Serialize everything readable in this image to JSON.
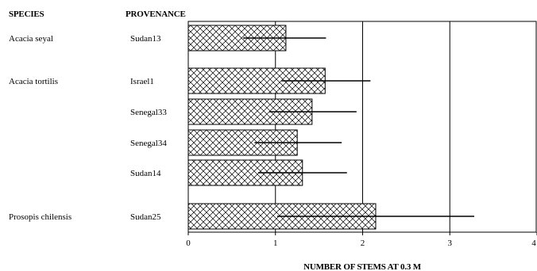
{
  "chart_data": {
    "type": "bar",
    "orientation": "horizontal",
    "headers": {
      "species": "SPECIES",
      "provenance": "PROVENANCE"
    },
    "xlabel": "NUMBER OF STEMS AT 0.3 M",
    "xlim": [
      0,
      4
    ],
    "xticks": [
      "0",
      "1",
      "2",
      "3",
      "4"
    ],
    "grid": true,
    "rows": [
      {
        "species": "Acacia seyal",
        "provenance": "Sudan13",
        "value": 1.12,
        "err_low": 0.63,
        "err_high": 1.58
      },
      {
        "species": "Acacia tortilis",
        "provenance": "Israel1",
        "value": 1.57,
        "err_low": 1.07,
        "err_high": 2.09
      },
      {
        "species": "",
        "provenance": "Senegal33",
        "value": 1.42,
        "err_low": 0.93,
        "err_high": 1.93
      },
      {
        "species": "",
        "provenance": "Senegal34",
        "value": 1.25,
        "err_low": 0.76,
        "err_high": 1.76
      },
      {
        "species": "",
        "provenance": "Sudan14",
        "value": 1.31,
        "err_low": 0.8,
        "err_high": 1.82
      },
      {
        "species": "Prosopis chilensis",
        "provenance": "Sudan25",
        "value": 2.15,
        "err_low": 1.02,
        "err_high": 3.28
      }
    ]
  }
}
